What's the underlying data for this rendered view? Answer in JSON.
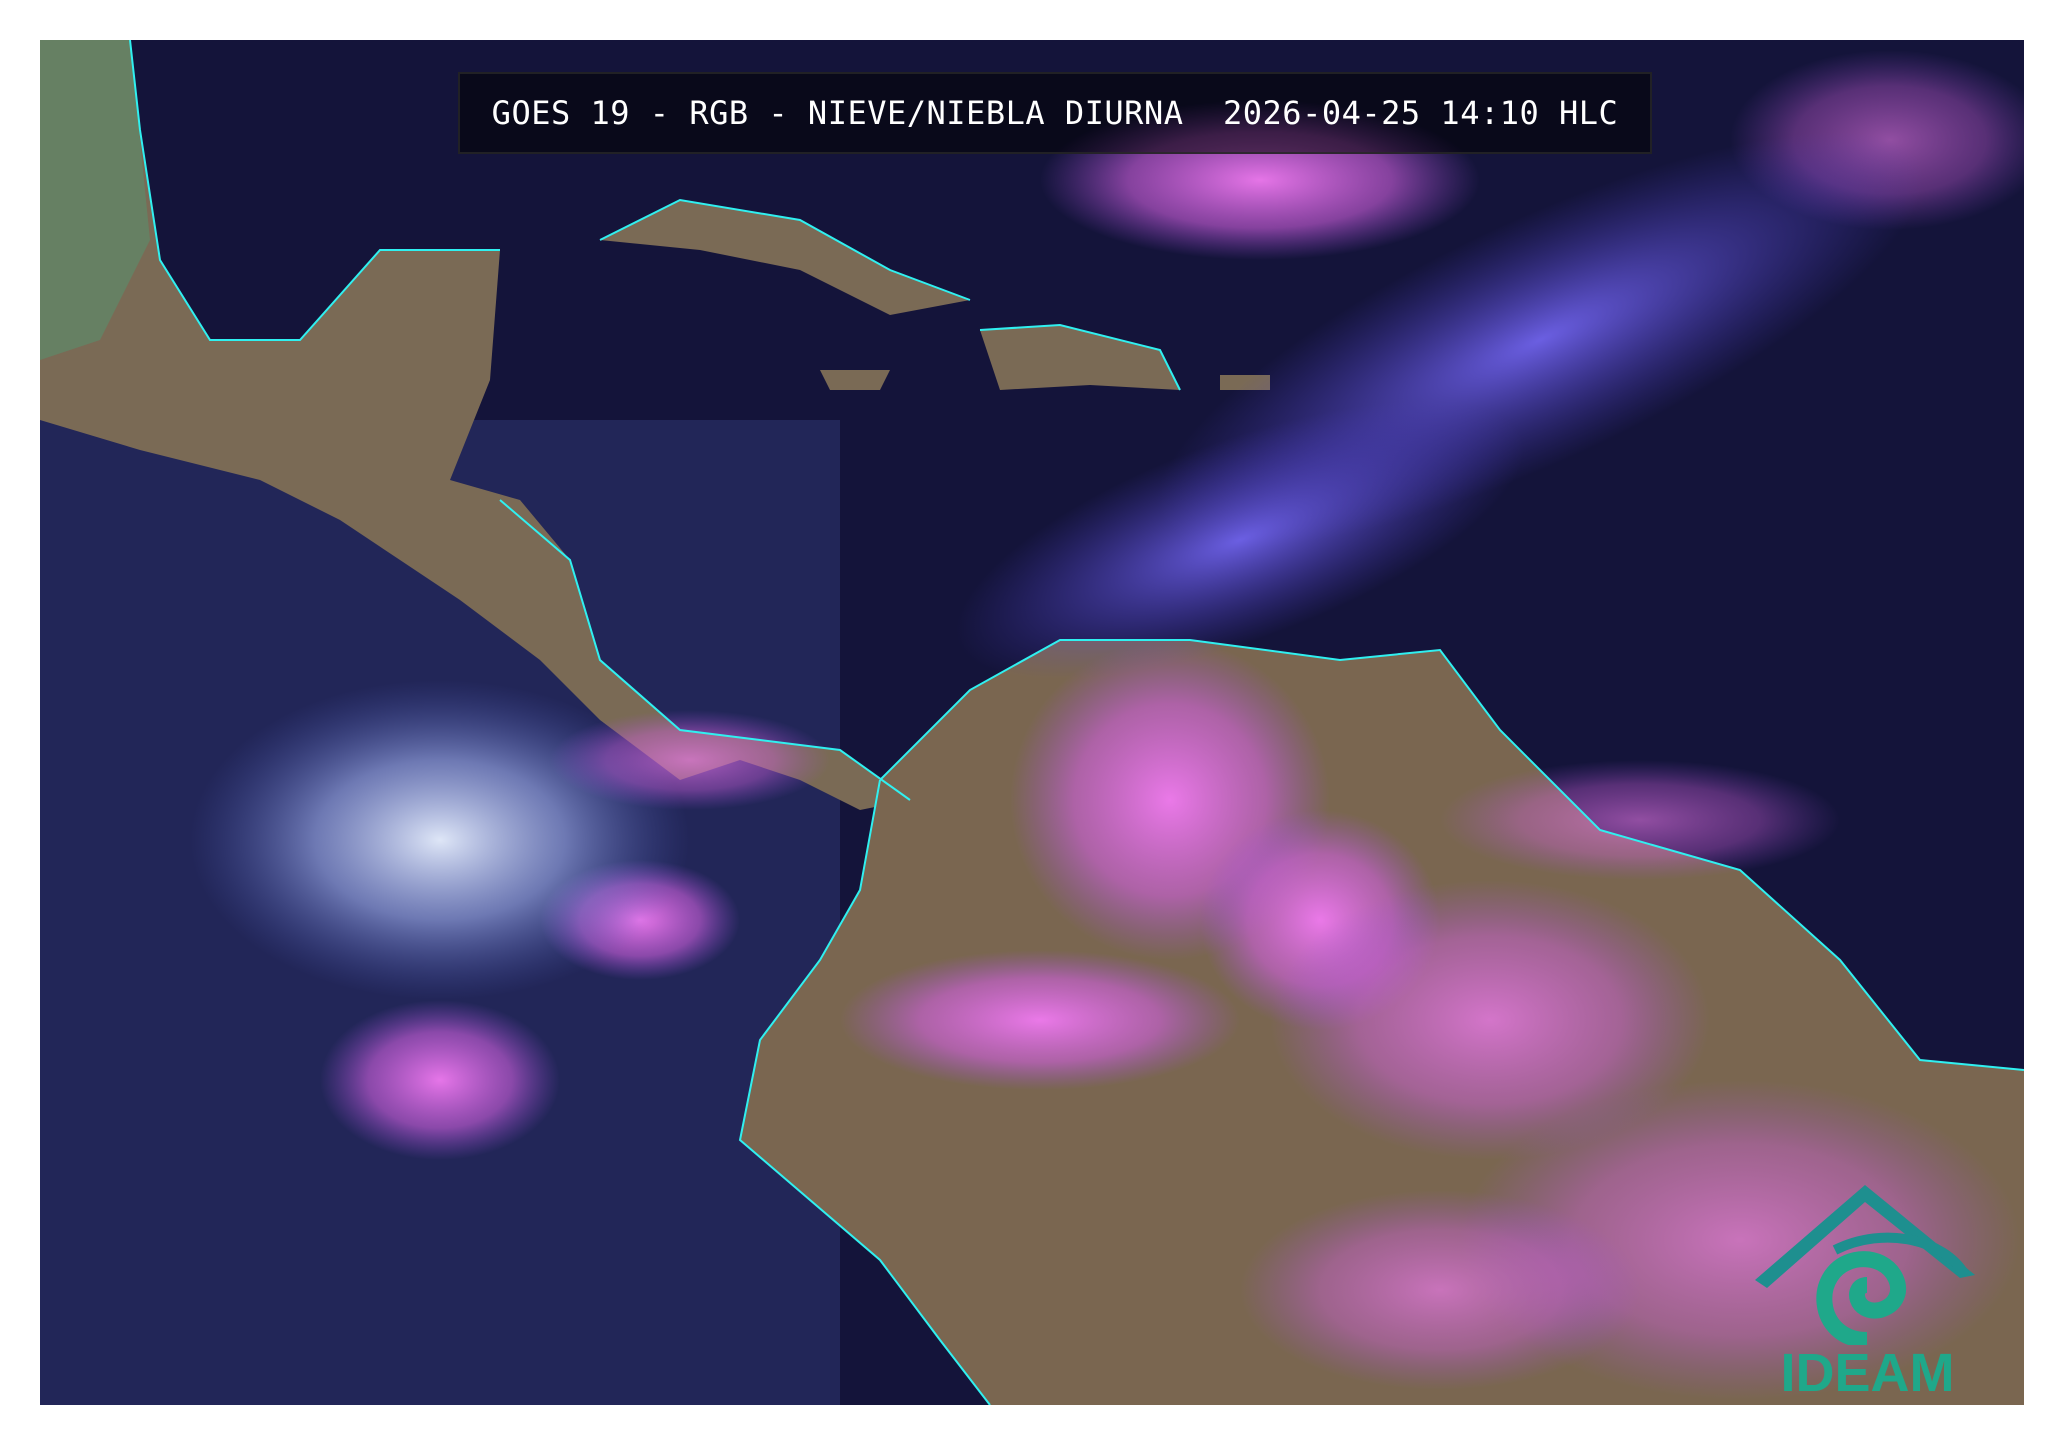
{
  "title": {
    "satellite": "GOES 19",
    "product": "RGB - NIEVE/NIEBLA DIURNA",
    "datetime": "2026-04-25 14:10 HLC",
    "full": "GOES 19 - RGB - NIEVE/NIEBLA DIURNA  2026-04-25 14:10 HLC"
  },
  "logo": {
    "text": "IDEAM",
    "color": "#1fa88a"
  },
  "colors": {
    "ocean": "#14143a",
    "land": "#7a6a5a",
    "cloud_pink": "#e070e8",
    "cloud_violet": "#6a5cf0",
    "borders": "#30f0f0"
  }
}
